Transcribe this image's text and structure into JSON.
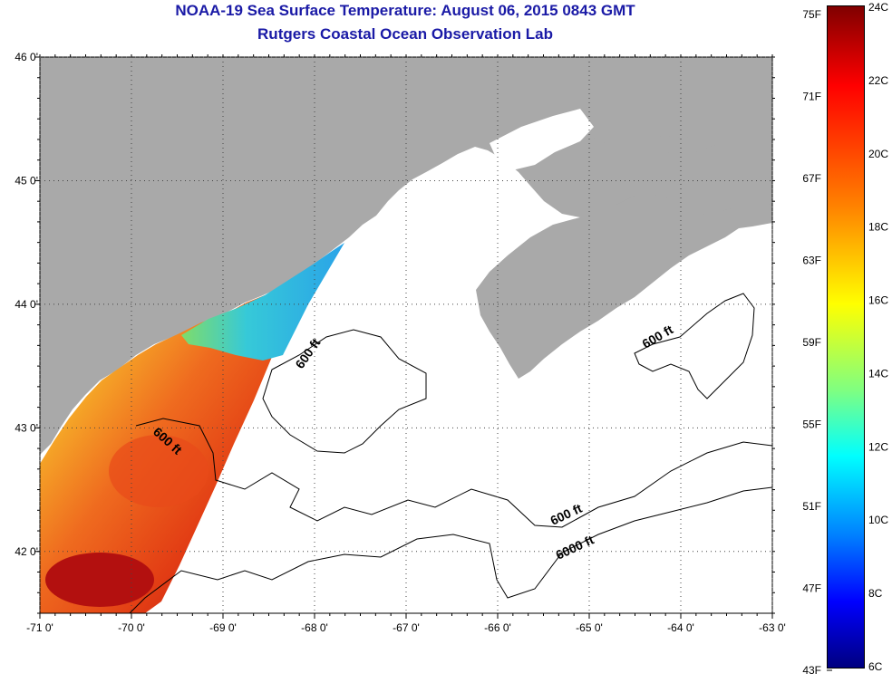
{
  "title": "NOAA-19 Sea Surface Temperature:  August 06, 2015 0843 GMT",
  "subtitle": "Rutgers Coastal Ocean Observation Lab",
  "colors": {
    "land": "#a9a9a9",
    "ocean_nodata": "#ffffff",
    "title": "#1a1aa6"
  },
  "axes": {
    "lat_labels": [
      "46 0'",
      "45 0'",
      "44 0'",
      "43 0'",
      "42 0'"
    ],
    "lat_values": [
      46,
      45,
      44,
      43,
      42
    ],
    "lon_labels": [
      "-71 0'",
      "-70 0'",
      "-69 0'",
      "-68 0'",
      "-67 0'",
      "-66 0'",
      "-65 0'",
      "-64 0'",
      "-63 0'"
    ],
    "lon_values": [
      -71,
      -70,
      -69,
      -68,
      -67,
      -66,
      -65,
      -64,
      -63
    ],
    "lat_range": [
      41.5,
      46.0
    ],
    "lon_range": [
      -71.0,
      -63.0
    ],
    "grid": "dotted"
  },
  "contours": [
    {
      "label": "600 ft"
    },
    {
      "label": "600 ft"
    },
    {
      "label": "600 ft"
    },
    {
      "label": "600 ft"
    },
    {
      "label": "6000 ft"
    }
  ],
  "colorbar": {
    "fahrenheit": [
      "75F",
      "71F",
      "67F",
      "63F",
      "59F",
      "55F",
      "51F",
      "47F",
      "43F"
    ],
    "celsius": [
      "24C",
      "22C",
      "20C",
      "18C",
      "16C",
      "14C",
      "12C",
      "10C",
      "8C",
      "6C"
    ],
    "range_c": [
      6,
      24
    ]
  }
}
